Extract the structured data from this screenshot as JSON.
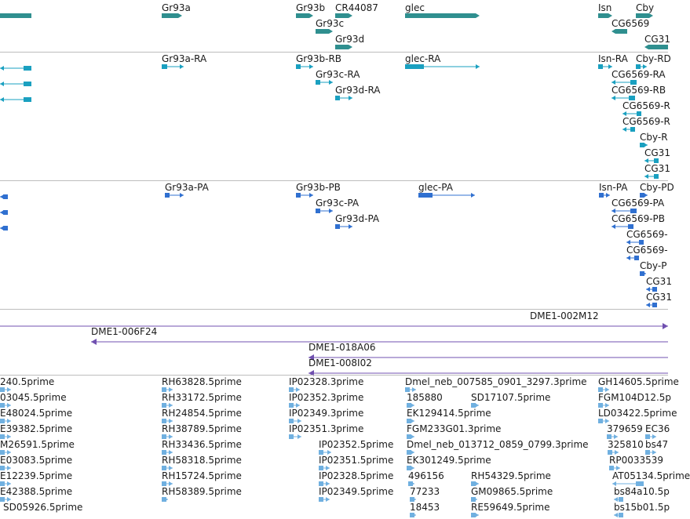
{
  "colors": {
    "gene": "#2f8f8f",
    "mrna": "#1aa0c0",
    "protein": "#3070d0",
    "bac": "#7050b0",
    "est": "#70b0e0",
    "divider": "#bdbdbd"
  },
  "tracks": [
    {
      "id": "genes",
      "colorKey": "gene",
      "features": [
        {
          "label": "",
          "shape": "box",
          "strand": 0
        },
        {
          "label": "Gr93a",
          "shape": "box",
          "strand": 1
        },
        {
          "label": "Gr93b",
          "shape": "box",
          "strand": 1
        },
        {
          "label": "CR44087",
          "shape": "box",
          "strand": 1
        },
        {
          "label": "glec",
          "shape": "box",
          "strand": 1
        },
        {
          "label": "Gr93c",
          "shape": "box",
          "strand": 1
        },
        {
          "label": "Gr93d",
          "shape": "box",
          "strand": 1
        },
        {
          "label": "Isn",
          "shape": "box",
          "strand": 1
        },
        {
          "label": "Cby",
          "shape": "box",
          "strand": 1
        },
        {
          "label": "CG6569",
          "shape": "box",
          "strand": -1
        },
        {
          "label": "CG31",
          "shape": "box",
          "strand": -1
        }
      ]
    },
    {
      "id": "transcripts",
      "colorKey": "mrna",
      "features": [
        {
          "label": "",
          "shape": "tx",
          "strand": -1
        },
        {
          "label": "",
          "shape": "tx",
          "strand": -1
        },
        {
          "label": "",
          "shape": "tx",
          "strand": -1
        },
        {
          "label": "Gr93a-RA",
          "shape": "tx",
          "strand": 1
        },
        {
          "label": "Gr93b-RB",
          "shape": "tx",
          "strand": 1
        },
        {
          "label": "glec-RA",
          "shape": "tx",
          "strand": 1
        },
        {
          "label": "Gr93c-RA",
          "shape": "tx",
          "strand": 1
        },
        {
          "label": "Gr93d-RA",
          "shape": "tx",
          "strand": 1
        },
        {
          "label": "Isn-RA",
          "shape": "tx",
          "strand": 1
        },
        {
          "label": "Cby-RD",
          "shape": "tx",
          "strand": 1
        },
        {
          "label": "CG6569-RA",
          "shape": "tx",
          "strand": -1
        },
        {
          "label": "CG6569-RB",
          "shape": "tx",
          "strand": -1
        },
        {
          "label": "CG6569-R",
          "shape": "tx",
          "strand": -1
        },
        {
          "label": "CG6569-R",
          "shape": "tx",
          "strand": -1
        },
        {
          "label": "Cby-R",
          "shape": "tx",
          "strand": 1
        },
        {
          "label": "CG31",
          "shape": "tx",
          "strand": -1
        },
        {
          "label": "CG31",
          "shape": "tx",
          "strand": -1
        }
      ]
    },
    {
      "id": "proteins",
      "colorKey": "protein",
      "features": [
        {
          "label": "",
          "shape": "tx",
          "strand": -1
        },
        {
          "label": "",
          "shape": "tx",
          "strand": -1
        },
        {
          "label": "",
          "shape": "tx",
          "strand": -1
        },
        {
          "label": "Gr93a-PA",
          "shape": "tx",
          "strand": 1
        },
        {
          "label": "Gr93b-PB",
          "shape": "tx",
          "strand": 1
        },
        {
          "label": "glec-PA",
          "shape": "tx",
          "strand": 1
        },
        {
          "label": "Gr93c-PA",
          "shape": "tx",
          "strand": 1
        },
        {
          "label": "Gr93d-PA",
          "shape": "tx",
          "strand": 1
        },
        {
          "label": "Isn-PA",
          "shape": "tx",
          "strand": 1
        },
        {
          "label": "Cby-PD",
          "shape": "tx",
          "strand": 1
        },
        {
          "label": "CG6569-PA",
          "shape": "tx",
          "strand": -1
        },
        {
          "label": "CG6569-PB",
          "shape": "tx",
          "strand": -1
        },
        {
          "label": "CG6569-",
          "shape": "tx",
          "strand": -1
        },
        {
          "label": "CG6569-",
          "shape": "tx",
          "strand": -1
        },
        {
          "label": "Cby-P",
          "shape": "tx",
          "strand": 1
        },
        {
          "label": "CG31",
          "shape": "tx",
          "strand": -1
        },
        {
          "label": "CG31",
          "shape": "tx",
          "strand": -1
        }
      ]
    },
    {
      "id": "bac-clones",
      "colorKey": "bac",
      "features": [
        {
          "label": "DME1-002M12",
          "shape": "line",
          "strand": 1
        },
        {
          "label": "DME1-006F24",
          "shape": "line",
          "strand": -1
        },
        {
          "label": "DME1-018A06",
          "shape": "line",
          "strand": -1
        },
        {
          "label": "DME1-008I02",
          "shape": "line",
          "strand": -1
        }
      ]
    },
    {
      "id": "est-reads",
      "colorKey": "est",
      "features": [
        {
          "label": "240.5prime",
          "shape": "tx",
          "strand": 1
        },
        {
          "label": "03045.5prime",
          "shape": "tx",
          "strand": 1
        },
        {
          "label": "E48024.5prime",
          "shape": "tx",
          "strand": 1
        },
        {
          "label": "E39382.5prime",
          "shape": "tx",
          "strand": 1
        },
        {
          "label": "M26591.5prime",
          "shape": "tx",
          "strand": 1
        },
        {
          "label": "E03083.5prime",
          "shape": "tx",
          "strand": 1
        },
        {
          "label": "E12239.5prime",
          "shape": "tx",
          "strand": 1
        },
        {
          "label": "E42388.5prime",
          "shape": "tx",
          "strand": 1
        },
        {
          "label": "SD05926.5prime",
          "shape": "tx",
          "strand": 1
        },
        {
          "label": "RH63828.5prime",
          "shape": "tx",
          "strand": 1
        },
        {
          "label": "RH33172.5prime",
          "shape": "tx",
          "strand": 1
        },
        {
          "label": "RH24854.5prime",
          "shape": "tx",
          "strand": 1
        },
        {
          "label": "RH38789.5prime",
          "shape": "tx",
          "strand": 1
        },
        {
          "label": "RH33436.5prime",
          "shape": "tx",
          "strand": 1
        },
        {
          "label": "RH58318.5prime",
          "shape": "tx",
          "strand": 1
        },
        {
          "label": "RH15724.5prime",
          "shape": "tx",
          "strand": 1
        },
        {
          "label": "RH58389.5prime",
          "shape": "tx",
          "strand": 1
        },
        {
          "label": "IP02328.3prime",
          "shape": "tx",
          "strand": 1
        },
        {
          "label": "IP02352.3prime",
          "shape": "tx",
          "strand": 1
        },
        {
          "label": "IP02349.3prime",
          "shape": "tx",
          "strand": 1
        },
        {
          "label": "IP02351.3prime",
          "shape": "tx",
          "strand": 1
        },
        {
          "label": "IP02352.5prime",
          "shape": "tx",
          "strand": 1
        },
        {
          "label": "IP02351.5prime",
          "shape": "tx",
          "strand": 1
        },
        {
          "label": "IP02328.5prime",
          "shape": "tx",
          "strand": 1
        },
        {
          "label": "IP02349.5prime",
          "shape": "tx",
          "strand": 1
        },
        {
          "label": "Dmel_neb_007585_0901_3297.3prime",
          "shape": "tx",
          "strand": 1
        },
        {
          "label": "185880",
          "shape": "tx",
          "strand": 1
        },
        {
          "label": "SD17107.5prime",
          "shape": "tx",
          "strand": 1
        },
        {
          "label": "EK129414.5prime",
          "shape": "tx",
          "strand": 1
        },
        {
          "label": "FGM233G01.3prime",
          "shape": "tx",
          "strand": 1
        },
        {
          "label": "Dmel_neb_013712_0859_0799.3prime",
          "shape": "tx",
          "strand": 1
        },
        {
          "label": "EK301249.5prime",
          "shape": "tx",
          "strand": 1
        },
        {
          "label": "496156",
          "shape": "tx",
          "strand": 1
        },
        {
          "label": "RH54329.5prime",
          "shape": "tx",
          "strand": 1
        },
        {
          "label": "77233",
          "shape": "tx",
          "strand": 1
        },
        {
          "label": "GM09865.5prime",
          "shape": "tx",
          "strand": 1
        },
        {
          "label": "18453",
          "shape": "tx",
          "strand": 1
        },
        {
          "label": "RE59649.5prime",
          "shape": "tx",
          "strand": 1
        },
        {
          "label": "GH14605.5prime",
          "shape": "tx",
          "strand": 1
        },
        {
          "label": "FGM104D12.5p",
          "shape": "tx",
          "strand": 1
        },
        {
          "label": "LD03422.5prime",
          "shape": "tx",
          "strand": 1
        },
        {
          "label": "379659",
          "shape": "tx",
          "strand": 1
        },
        {
          "label": "EC36",
          "shape": "tx",
          "strand": 1
        },
        {
          "label": "325810",
          "shape": "tx",
          "strand": 1
        },
        {
          "label": "bs47",
          "shape": "tx",
          "strand": 1
        },
        {
          "label": "RP0033539",
          "shape": "tx",
          "strand": 1
        },
        {
          "label": "AT05134.5prime",
          "shape": "tx",
          "strand": -1
        },
        {
          "label": "bs84a10.5p",
          "shape": "tx",
          "strand": -1
        },
        {
          "label": "bs15b01.5p",
          "shape": "tx",
          "strand": -1
        }
      ]
    }
  ]
}
